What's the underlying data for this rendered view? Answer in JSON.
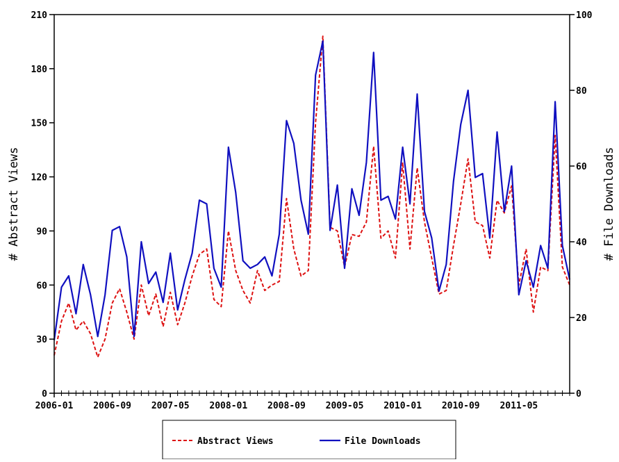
{
  "chart_data": {
    "type": "line",
    "title": "",
    "xlabel": "",
    "ylabel_left": "# Abstract Views",
    "ylabel_right": "# File Downloads",
    "x_tick_labels": [
      "2006-01",
      "2006-09",
      "2007-05",
      "2008-01",
      "2008-09",
      "2009-05",
      "2010-01",
      "2010-09",
      "2011-05"
    ],
    "y_left": {
      "range": [
        0,
        210
      ],
      "ticks": [
        "0",
        "30",
        "60",
        "90",
        "120",
        "150",
        "180",
        "210"
      ]
    },
    "y_right": {
      "range": [
        0,
        100
      ],
      "ticks": [
        "0",
        "20",
        "40",
        "60",
        "80",
        "100"
      ]
    },
    "grid": false,
    "legend_position": "bottom-center",
    "x": [
      "2006-01",
      "2006-02",
      "2006-03",
      "2006-04",
      "2006-05",
      "2006-06",
      "2006-07",
      "2006-08",
      "2006-09",
      "2006-10",
      "2006-11",
      "2006-12",
      "2007-01",
      "2007-02",
      "2007-03",
      "2007-04",
      "2007-05",
      "2007-06",
      "2007-07",
      "2007-08",
      "2007-09",
      "2007-10",
      "2007-11",
      "2007-12",
      "2008-01",
      "2008-02",
      "2008-03",
      "2008-04",
      "2008-05",
      "2008-06",
      "2008-07",
      "2008-08",
      "2008-09",
      "2008-10",
      "2008-11",
      "2008-12",
      "2009-01",
      "2009-02",
      "2009-03",
      "2009-04",
      "2009-05",
      "2009-06",
      "2009-07",
      "2009-08",
      "2009-09",
      "2009-10",
      "2009-11",
      "2009-12",
      "2010-01",
      "2010-02",
      "2010-03",
      "2010-04",
      "2010-05",
      "2010-06",
      "2010-07",
      "2010-08",
      "2010-09",
      "2010-10",
      "2010-11",
      "2010-12",
      "2011-01",
      "2011-02",
      "2011-03",
      "2011-04",
      "2011-05",
      "2011-06",
      "2011-07",
      "2011-08",
      "2011-09",
      "2011-10",
      "2011-11",
      "2011-12"
    ],
    "series": [
      {
        "name": "Abstract Views",
        "axis": "left",
        "color": "#dd1111",
        "style": "dashed",
        "values": [
          21,
          40,
          50,
          35,
          40,
          33,
          20,
          30,
          50,
          58,
          45,
          30,
          60,
          43,
          55,
          37,
          56,
          38,
          50,
          65,
          77,
          80,
          52,
          48,
          90,
          68,
          57,
          50,
          68,
          57,
          60,
          62,
          108,
          80,
          65,
          68,
          150,
          198,
          92,
          90,
          70,
          88,
          87,
          95,
          137,
          86,
          90,
          75,
          128,
          80,
          125,
          95,
          75,
          55,
          57,
          82,
          105,
          130,
          95,
          93,
          75,
          107,
          100,
          115,
          60,
          80,
          45,
          70,
          68,
          143,
          70,
          60
        ]
      },
      {
        "name": "File Downloads",
        "axis": "right",
        "color": "#1010c0",
        "style": "solid",
        "values": [
          14,
          28,
          31,
          21,
          34,
          26,
          15,
          26,
          43,
          44,
          36,
          15,
          40,
          29,
          32,
          24,
          37,
          22,
          30,
          37,
          51,
          50,
          33,
          28,
          65,
          53,
          35,
          33,
          34,
          36,
          31,
          42,
          72,
          66,
          51,
          42,
          84,
          93,
          43,
          55,
          33,
          54,
          47,
          61,
          90,
          51,
          52,
          46,
          65,
          50,
          79,
          48,
          41,
          27,
          34,
          56,
          71,
          80,
          57,
          58,
          41,
          69,
          48,
          60,
          26,
          35,
          28,
          39,
          33,
          77,
          39,
          30
        ]
      }
    ]
  }
}
